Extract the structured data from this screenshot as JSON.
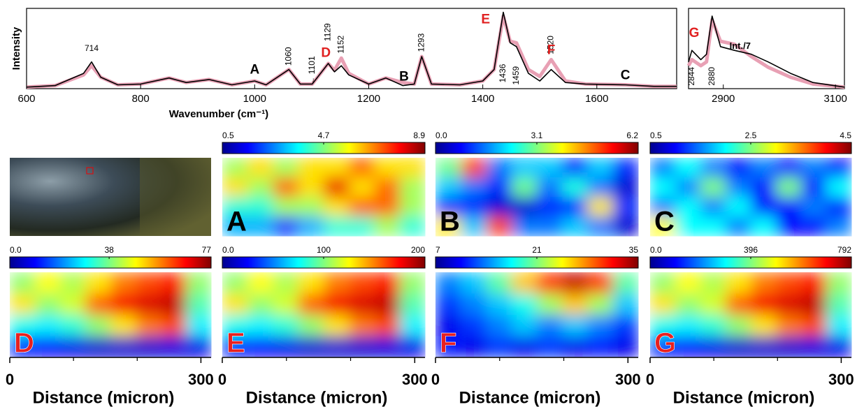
{
  "chart_data": [
    {
      "type": "line",
      "ylabel": "Intensity",
      "xlabel": "Wavenumber (cm⁻¹)",
      "xlim": [
        600,
        1740
      ],
      "ylim": [
        0,
        1.05
      ],
      "xticks": [
        600,
        800,
        1000,
        1200,
        1400,
        1600
      ],
      "x": [
        600,
        650,
        700,
        714,
        730,
        760,
        800,
        850,
        880,
        920,
        960,
        1000,
        1020,
        1060,
        1080,
        1101,
        1129,
        1140,
        1152,
        1165,
        1200,
        1230,
        1260,
        1280,
        1293,
        1310,
        1360,
        1400,
        1420,
        1436,
        1448,
        1459,
        1480,
        1500,
        1520,
        1545,
        1580,
        1650,
        1700,
        1740
      ],
      "series": [
        {
          "color": "#e8a0b4",
          "values": [
            0.02,
            0.04,
            0.18,
            0.3,
            0.15,
            0.05,
            0.06,
            0.14,
            0.08,
            0.12,
            0.05,
            0.1,
            0.05,
            0.25,
            0.06,
            0.06,
            0.33,
            0.24,
            0.4,
            0.2,
            0.06,
            0.14,
            0.08,
            0.06,
            0.42,
            0.06,
            0.05,
            0.1,
            0.25,
            0.95,
            0.62,
            0.6,
            0.25,
            0.16,
            0.38,
            0.1,
            0.06,
            0.05,
            0.03,
            0.03
          ]
        },
        {
          "color": "#000000",
          "values": [
            0.02,
            0.04,
            0.2,
            0.35,
            0.15,
            0.05,
            0.06,
            0.14,
            0.08,
            0.12,
            0.05,
            0.1,
            0.05,
            0.25,
            0.06,
            0.06,
            0.33,
            0.22,
            0.3,
            0.18,
            0.06,
            0.14,
            0.04,
            0.06,
            0.42,
            0.06,
            0.05,
            0.1,
            0.25,
            1.0,
            0.6,
            0.55,
            0.2,
            0.1,
            0.25,
            0.08,
            0.06,
            0.05,
            0.03,
            0.03
          ]
        }
      ],
      "annotations": [
        {
          "text": "714",
          "x": 714,
          "y": 0.52,
          "color": "#000"
        },
        {
          "text": "1060",
          "x": 1060,
          "y": 0.3,
          "color": "#000",
          "rotated": true
        },
        {
          "text": "← 1101",
          "x": 1101,
          "y": 0.05,
          "color": "#000",
          "rotated": true
        },
        {
          "text": "1129",
          "x": 1129,
          "y": 0.62,
          "color": "#000",
          "rotated": true
        },
        {
          "text": "1152",
          "x": 1152,
          "y": 0.46,
          "color": "#000",
          "rotated": true
        },
        {
          "text": "1293",
          "x": 1293,
          "y": 0.48,
          "color": "#000",
          "rotated": true
        },
        {
          "text": "1436",
          "x": 1436,
          "y": 0.08,
          "color": "#000",
          "rotated": true
        },
        {
          "text": "1459",
          "x": 1459,
          "y": 0.05,
          "color": "#000",
          "rotated": true
        },
        {
          "text": "1520",
          "x": 1520,
          "y": 0.45,
          "color": "#000",
          "rotated": true
        },
        {
          "text": "A",
          "x": 1000,
          "y": 0.24,
          "color": "#000",
          "bold": true
        },
        {
          "text": "B",
          "x": 1262,
          "y": 0.15,
          "color": "#000",
          "bold": true
        },
        {
          "text": "C",
          "x": 1650,
          "y": 0.17,
          "color": "#000",
          "bold": true
        },
        {
          "text": "D",
          "x": 1125,
          "y": 0.46,
          "color": "#e02020",
          "bold": true
        },
        {
          "text": "E",
          "x": 1405,
          "y": 0.9,
          "color": "#e02020",
          "bold": true
        },
        {
          "text": "F",
          "x": 1520,
          "y": 0.5,
          "color": "#e02020",
          "bold": true
        }
      ]
    },
    {
      "type": "line",
      "xlim": [
        2838,
        3116
      ],
      "ylim": [
        0,
        1.05
      ],
      "xticks": [
        2900,
        3100
      ],
      "x": [
        2838,
        2844,
        2860,
        2870,
        2880,
        2895,
        2920,
        2950,
        2980,
        3020,
        3060,
        3116
      ],
      "series": [
        {
          "color": "#e8a0b4",
          "values": [
            0.3,
            0.38,
            0.3,
            0.35,
            0.9,
            0.62,
            0.58,
            0.42,
            0.28,
            0.15,
            0.06,
            0.02
          ]
        },
        {
          "color": "#000000",
          "values": [
            0.35,
            0.5,
            0.38,
            0.45,
            0.95,
            0.55,
            0.5,
            0.45,
            0.35,
            0.2,
            0.08,
            0.02
          ]
        }
      ],
      "annotations": [
        {
          "text": "G",
          "x": 2848,
          "y": 0.72,
          "color": "#e02020",
          "bold": true
        },
        {
          "text": "Int./7",
          "x": 2930,
          "y": 0.55,
          "color": "#000",
          "bold": true
        },
        {
          "text": "2844",
          "x": 2844,
          "y": 0.04,
          "color": "#000",
          "rotated": true
        },
        {
          "text": "2880",
          "x": 2880,
          "y": 0.04,
          "color": "#000",
          "rotated": true
        }
      ]
    },
    {
      "type": "heatmap",
      "label": "A",
      "label_color": "#000000",
      "colormap": "jet",
      "zlim": [
        0.5,
        8.9
      ],
      "zticks": [
        0.5,
        4.7,
        8.9
      ],
      "values": [
        [
          5,
          6,
          5,
          6,
          6,
          7,
          6,
          6
        ],
        [
          6,
          5,
          7,
          6,
          8,
          6,
          7,
          5
        ],
        [
          4,
          4,
          5,
          5,
          6,
          7,
          7,
          5
        ],
        [
          3,
          3,
          2,
          3,
          4,
          4,
          5,
          4
        ]
      ]
    },
    {
      "type": "heatmap",
      "label": "B",
      "label_color": "#000000",
      "colormap": "jet",
      "zlim": [
        0,
        6.2
      ],
      "zticks": [
        {
          "value": 0,
          "label": "0.0"
        },
        3.1,
        6.2
      ],
      "values": [
        [
          3,
          5,
          1.5,
          2,
          2,
          1,
          2,
          1
        ],
        [
          2,
          1.5,
          1,
          3,
          1.5,
          2.5,
          1.5,
          0.5
        ],
        [
          1,
          1,
          0.5,
          0.5,
          1,
          1,
          4,
          1
        ],
        [
          4,
          2,
          5,
          1.5,
          1.5,
          2,
          1.5,
          0.5
        ]
      ]
    },
    {
      "type": "heatmap",
      "label": "C",
      "label_color": "#000000",
      "colormap": "jet",
      "zlim": [
        0.5,
        4.5
      ],
      "zticks": [
        0.5,
        2.5,
        4.5
      ],
      "values": [
        [
          1.5,
          2,
          1.5,
          1,
          1.5,
          1,
          1.5,
          1
        ],
        [
          2,
          1.5,
          2.5,
          1.5,
          1,
          2.5,
          1,
          2
        ],
        [
          1.5,
          2,
          1.5,
          2,
          1,
          1,
          1.5,
          1
        ],
        [
          3,
          2,
          2,
          1.5,
          2,
          1,
          1,
          1.5
        ]
      ]
    },
    {
      "type": "heatmap",
      "label": "D",
      "label_color": "#e82020",
      "colormap": "jet",
      "zlim": [
        0,
        77
      ],
      "zticks": [
        {
          "value": 0,
          "label": "0.0"
        },
        38,
        77
      ],
      "xlim": [
        0,
        316
      ],
      "xticks": [
        0,
        300
      ],
      "xminor": [
        100,
        200
      ],
      "xlabel": "Distance (micron)",
      "values": [
        [
          40,
          48,
          42,
          50,
          58,
          62,
          65,
          40
        ],
        [
          50,
          40,
          45,
          60,
          68,
          70,
          72,
          35
        ],
        [
          30,
          28,
          32,
          40,
          50,
          58,
          62,
          28
        ],
        [
          12,
          10,
          8,
          6,
          6,
          6,
          7,
          8
        ]
      ]
    },
    {
      "type": "heatmap",
      "label": "E",
      "label_color": "#e82020",
      "colormap": "jet",
      "zlim": [
        0,
        200
      ],
      "zticks": [
        {
          "value": 0,
          "label": "0.0"
        },
        100,
        200
      ],
      "xlim": [
        0,
        316
      ],
      "xticks": [
        0,
        300
      ],
      "xminor": [
        100,
        200
      ],
      "xlabel": "Distance (micron)",
      "values": [
        [
          104,
          125,
          109,
          130,
          151,
          161,
          169,
          104
        ],
        [
          130,
          104,
          117,
          156,
          177,
          182,
          187,
          91
        ],
        [
          78,
          73,
          83,
          104,
          130,
          151,
          161,
          73
        ],
        [
          31,
          26,
          21,
          16,
          16,
          16,
          18,
          21
        ]
      ]
    },
    {
      "type": "heatmap",
      "label": "F",
      "label_color": "#e82020",
      "colormap": "jet",
      "zlim": [
        7,
        35
      ],
      "zticks": [
        7,
        21,
        35
      ],
      "xlim": [
        0,
        316
      ],
      "xticks": [
        0,
        300
      ],
      "xminor": [
        100,
        200
      ],
      "xlabel": "Distance (micron)",
      "values": [
        [
          14,
          16,
          20,
          26,
          30,
          33,
          30,
          20
        ],
        [
          12,
          14,
          16,
          18,
          22,
          26,
          22,
          16
        ],
        [
          10,
          12,
          14,
          16,
          14,
          16,
          14,
          12
        ],
        [
          11,
          10,
          12,
          10,
          12,
          10,
          11,
          10
        ]
      ]
    },
    {
      "type": "heatmap",
      "label": "G",
      "label_color": "#e82020",
      "colormap": "jet",
      "zlim": [
        0,
        792
      ],
      "zticks": [
        {
          "value": 0,
          "label": "0.0"
        },
        396,
        792
      ],
      "xlim": [
        0,
        316
      ],
      "xticks": [
        0,
        300
      ],
      "xminor": [
        100,
        200
      ],
      "xlabel": "Distance (micron)",
      "values": [
        [
          412,
          494,
          433,
          515,
          597,
          639,
          670,
          412
        ],
        [
          515,
          412,
          464,
          618,
          700,
          721,
          742,
          361
        ],
        [
          309,
          288,
          330,
          412,
          515,
          597,
          639,
          288
        ],
        [
          124,
          103,
          82,
          62,
          62,
          62,
          72,
          82
        ]
      ]
    }
  ]
}
